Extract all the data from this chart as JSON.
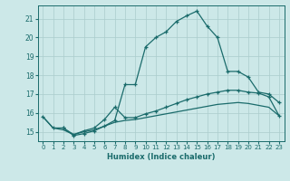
{
  "title": "",
  "xlabel": "Humidex (Indice chaleur)",
  "background_color": "#cce8e8",
  "grid_color": "#aacccc",
  "line_color": "#1a6b6b",
  "xlim": [
    -0.5,
    23.5
  ],
  "ylim": [
    14.5,
    21.7
  ],
  "yticks": [
    15,
    16,
    17,
    18,
    19,
    20,
    21
  ],
  "xticks": [
    0,
    1,
    2,
    3,
    4,
    5,
    6,
    7,
    8,
    9,
    10,
    11,
    12,
    13,
    14,
    15,
    16,
    17,
    18,
    19,
    20,
    21,
    22,
    23
  ],
  "curve1_x": [
    0,
    1,
    2,
    3,
    4,
    5,
    6,
    7,
    8,
    9,
    10,
    11,
    12,
    13,
    14,
    15,
    16,
    17,
    18,
    19,
    20,
    21,
    22,
    23
  ],
  "curve1_y": [
    15.8,
    15.2,
    15.2,
    14.8,
    14.9,
    15.05,
    15.3,
    15.6,
    17.5,
    17.5,
    19.5,
    20.0,
    20.3,
    20.85,
    21.15,
    21.4,
    20.6,
    20.0,
    18.2,
    18.2,
    17.9,
    17.1,
    17.0,
    16.55
  ],
  "curve2_x": [
    2,
    3,
    4,
    5,
    6,
    7,
    8,
    9,
    10,
    11,
    12,
    13,
    14,
    15,
    16,
    17,
    18,
    19,
    20,
    21,
    22,
    23
  ],
  "curve2_y": [
    15.2,
    14.85,
    15.05,
    15.2,
    15.65,
    16.3,
    15.75,
    15.75,
    15.95,
    16.1,
    16.3,
    16.5,
    16.7,
    16.85,
    17.0,
    17.1,
    17.2,
    17.2,
    17.1,
    17.05,
    16.85,
    15.85
  ],
  "curve3_x": [
    0,
    1,
    2,
    3,
    4,
    5,
    6,
    7,
    8,
    9,
    10,
    11,
    12,
    13,
    14,
    15,
    16,
    17,
    18,
    19,
    20,
    21,
    22,
    23
  ],
  "curve3_y": [
    15.8,
    15.2,
    15.1,
    14.85,
    15.0,
    15.1,
    15.3,
    15.5,
    15.6,
    15.65,
    15.75,
    15.85,
    15.95,
    16.05,
    16.15,
    16.25,
    16.35,
    16.45,
    16.5,
    16.55,
    16.5,
    16.4,
    16.3,
    15.85
  ]
}
